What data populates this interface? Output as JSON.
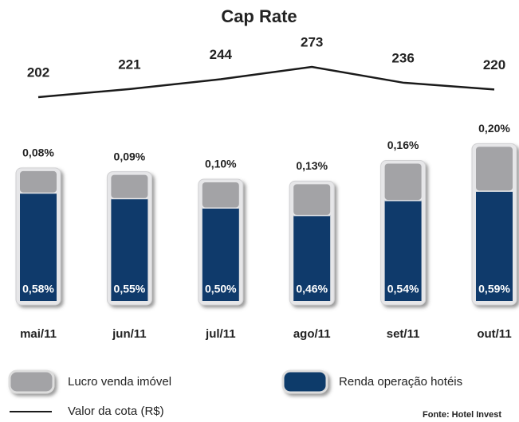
{
  "chart_data": {
    "type": "bar",
    "stacked": true,
    "title": "Cap Rate",
    "categories": [
      "mai/11",
      "jun/11",
      "jul/11",
      "ago/11",
      "set/11",
      "out/11"
    ],
    "ylim": [
      0,
      0.8
    ],
    "y2lim": [
      0,
      300
    ],
    "series": [
      {
        "name": "Renda operação hotéis",
        "color": "#0f3a6b",
        "values": [
          0.58,
          0.55,
          0.5,
          0.46,
          0.54,
          0.59
        ],
        "value_labels": [
          "0,58%",
          "0,55%",
          "0,50%",
          "0,46%",
          "0,54%",
          "0,59%"
        ]
      },
      {
        "name": "Lucro venda imóvel",
        "color": "#a3a3a6",
        "values": [
          0.08,
          0.09,
          0.1,
          0.13,
          0.16,
          0.2
        ],
        "value_labels": [
          "0,08%",
          "0,09%",
          "0,10%",
          "0,13%",
          "0,16%",
          "0,20%"
        ]
      },
      {
        "name": "Valor da cota (R$)",
        "type": "line",
        "axis": "y2",
        "color": "#1a1a1a",
        "values": [
          202,
          221,
          244,
          273,
          236,
          220
        ]
      }
    ],
    "source": "Fonte: Hotel Invest"
  }
}
